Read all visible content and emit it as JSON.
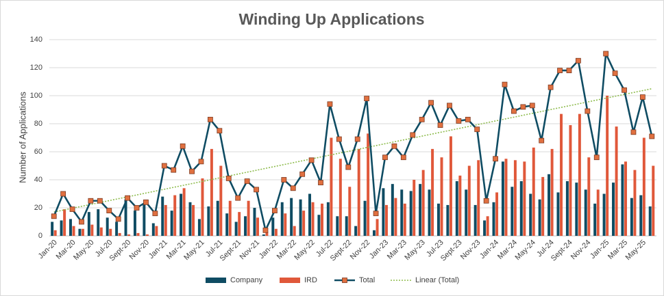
{
  "chart_data": {
    "type": "bar-line",
    "title": "Winding Up Applications",
    "y_label": "Number of Applications",
    "categories": [
      "Jan-20",
      null,
      "Mar-20",
      null,
      "May-20",
      null,
      "Jul-20",
      null,
      "Sept-20",
      null,
      "Nov-20",
      null,
      "Jan-21",
      null,
      "Mar-21",
      null,
      "May-21",
      null,
      "Jul-21",
      null,
      "Sept-21",
      null,
      "Nov-21",
      null,
      "Jan-22",
      null,
      "Mar-22",
      null,
      "May-22",
      null,
      "Jul-22",
      null,
      "Sept-22",
      null,
      "Nov-22",
      null,
      "Jan-23",
      null,
      "Mar-23",
      null,
      "May-23",
      null,
      "Jul-23",
      null,
      "Sept-23",
      null,
      "Nov-23",
      null,
      "Jan-24",
      null,
      "Mar-24",
      null,
      "May-24",
      null,
      "Jul-24",
      null,
      "Sept-24",
      null,
      "Nov-24",
      null,
      "Jan-25",
      null,
      "Mar-25",
      null,
      "May-25",
      null
    ],
    "series": [
      {
        "name": "Company",
        "kind": "bar",
        "color": "#0f4c63",
        "values": [
          10,
          11,
          12,
          5,
          17,
          19,
          13,
          10,
          26,
          18,
          23,
          9,
          28,
          18,
          30,
          24,
          12,
          21,
          25,
          16,
          10,
          14,
          20,
          1,
          13,
          24,
          27,
          26,
          30,
          15,
          24,
          14,
          14,
          7,
          25,
          4,
          34,
          37,
          33,
          32,
          37,
          33,
          23,
          22,
          39,
          33,
          22,
          11,
          24,
          53,
          35,
          39,
          30,
          26,
          44,
          31,
          39,
          38,
          33,
          23,
          30,
          38,
          51,
          27,
          29,
          21
        ]
      },
      {
        "name": "IRD",
        "kind": "bar",
        "color": "#e0583a",
        "values": [
          4,
          19,
          7,
          5,
          8,
          6,
          5,
          2,
          1,
          2,
          1,
          7,
          22,
          29,
          34,
          22,
          41,
          62,
          50,
          25,
          17,
          25,
          13,
          3,
          5,
          16,
          7,
          18,
          24,
          23,
          70,
          55,
          35,
          62,
          73,
          12,
          22,
          27,
          23,
          40,
          47,
          62,
          56,
          71,
          43,
          50,
          54,
          14,
          31,
          55,
          54,
          53,
          63,
          42,
          62,
          87,
          79,
          87,
          56,
          33,
          100,
          78,
          53,
          47,
          70,
          50
        ]
      },
      {
        "name": "Total",
        "kind": "line",
        "color": "#0f4c63",
        "marker_color": "#e07040",
        "values": [
          14,
          30,
          19,
          10,
          25,
          25,
          18,
          12,
          27,
          20,
          24,
          16,
          50,
          47,
          64,
          46,
          53,
          83,
          75,
          41,
          27,
          39,
          33,
          4,
          18,
          40,
          34,
          44,
          54,
          38,
          94,
          69,
          49,
          69,
          98,
          16,
          56,
          64,
          56,
          72,
          83,
          95,
          79,
          93,
          82,
          83,
          76,
          25,
          55,
          108,
          89,
          92,
          93,
          68,
          106,
          118,
          118,
          125,
          89,
          56,
          130,
          116,
          104,
          74,
          99,
          71
        ]
      }
    ],
    "trendline": {
      "name": "Linear (Total)",
      "color": "#8dbb4c",
      "values": [
        17,
        105
      ]
    },
    "ylim": [
      0,
      140
    ],
    "yticks": [
      0,
      20,
      40,
      60,
      80,
      100,
      120,
      140
    ],
    "grid": true,
    "legend": "bottom"
  }
}
